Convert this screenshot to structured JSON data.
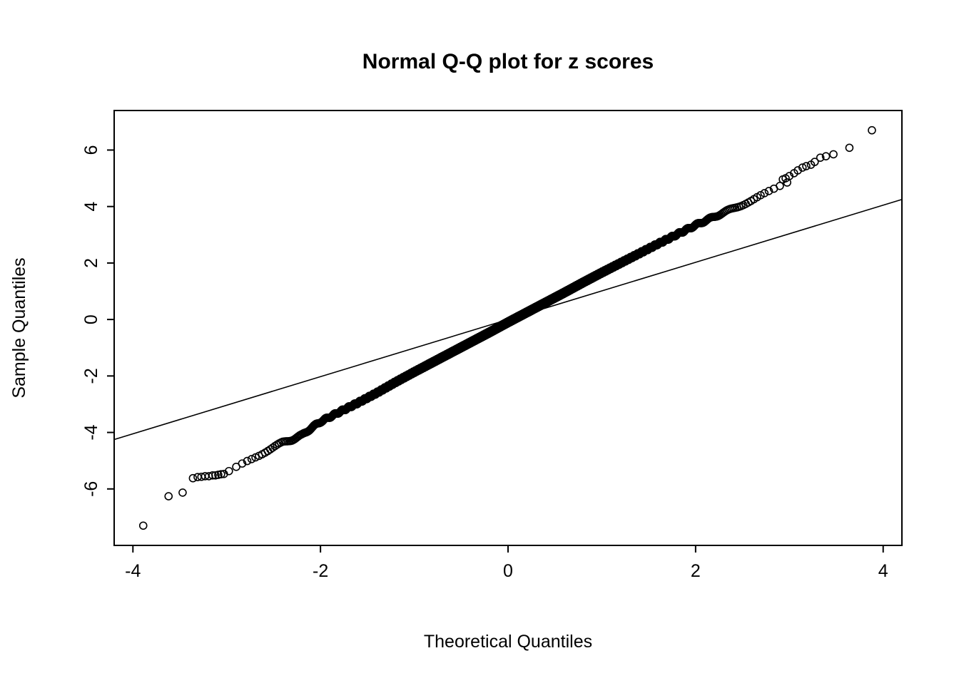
{
  "chart_data": {
    "type": "scatter",
    "subtype": "normal-qq-plot",
    "title": "Normal Q-Q plot for z scores",
    "xlabel": "Theoretical Quantiles",
    "ylabel": "Sample Quantiles",
    "xlim": [
      -4.2,
      4.2
    ],
    "ylim": [
      -8.0,
      7.4
    ],
    "x_ticks": [
      -4,
      -2,
      0,
      2,
      4
    ],
    "y_ticks": [
      -6,
      -4,
      -2,
      0,
      2,
      4,
      6
    ],
    "grid": false,
    "legend": "none",
    "point_style": {
      "marker": "open-circle",
      "radius": 5,
      "stroke_width": 1.6,
      "color": "#000000"
    },
    "n_points": 2400,
    "curve_anchors": [
      [
        -3.0,
        -5.45
      ],
      [
        -2.8,
        -5.05
      ],
      [
        -2.6,
        -4.7
      ],
      [
        -2.4,
        -4.35
      ],
      [
        -2.3,
        -4.25
      ],
      [
        -2.2,
        -4.1
      ],
      [
        -2.1,
        -3.85
      ],
      [
        -2.0,
        -3.62
      ],
      [
        -1.8,
        -3.28
      ],
      [
        -1.6,
        -2.95
      ],
      [
        -1.4,
        -2.6
      ],
      [
        -1.2,
        -2.22
      ],
      [
        -1.0,
        -1.86
      ],
      [
        -0.8,
        -1.51
      ],
      [
        -0.6,
        -1.16
      ],
      [
        -0.4,
        -0.81
      ],
      [
        -0.2,
        -0.46
      ],
      [
        0.0,
        -0.1
      ],
      [
        0.2,
        0.25
      ],
      [
        0.4,
        0.6
      ],
      [
        0.6,
        0.95
      ],
      [
        0.8,
        1.31
      ],
      [
        1.0,
        1.66
      ],
      [
        1.2,
        2.0
      ],
      [
        1.4,
        2.34
      ],
      [
        1.6,
        2.68
      ],
      [
        1.8,
        3.01
      ],
      [
        2.0,
        3.34
      ],
      [
        2.2,
        3.64
      ],
      [
        2.4,
        3.93
      ],
      [
        2.6,
        4.21
      ],
      [
        2.8,
        4.55
      ],
      [
        3.0,
        4.9
      ]
    ],
    "lower_tail_points": [
      [
        -3.89,
        -7.3
      ],
      [
        -3.62,
        -6.26
      ],
      [
        -3.47,
        -6.13
      ],
      [
        -3.36,
        -5.62
      ],
      [
        -3.31,
        -5.58
      ],
      [
        -3.27,
        -5.57
      ],
      [
        -3.23,
        -5.55
      ],
      [
        -3.19,
        -5.55
      ],
      [
        -3.15,
        -5.52
      ],
      [
        -3.12,
        -5.52
      ],
      [
        -3.09,
        -5.5
      ],
      [
        -3.06,
        -5.48
      ],
      [
        -3.03,
        -5.47
      ]
    ],
    "upper_tail_points": [
      [
        3.88,
        6.7
      ],
      [
        3.64,
        6.08
      ],
      [
        3.47,
        5.85
      ],
      [
        3.39,
        5.78
      ],
      [
        3.33,
        5.73
      ],
      [
        3.27,
        5.58
      ],
      [
        3.23,
        5.48
      ],
      [
        3.18,
        5.43
      ],
      [
        3.14,
        5.38
      ],
      [
        3.09,
        5.28
      ],
      [
        3.05,
        5.18
      ],
      [
        3.0,
        5.08
      ],
      [
        2.96,
        5.0
      ],
      [
        2.93,
        4.96
      ]
    ],
    "reference_line": {
      "x1": -4.2,
      "y1": -4.25,
      "x2": 4.2,
      "y2": 4.25,
      "slope": 1.012,
      "intercept": 0.0
    }
  },
  "colors": {
    "background": "#ffffff",
    "foreground": "#000000"
  }
}
